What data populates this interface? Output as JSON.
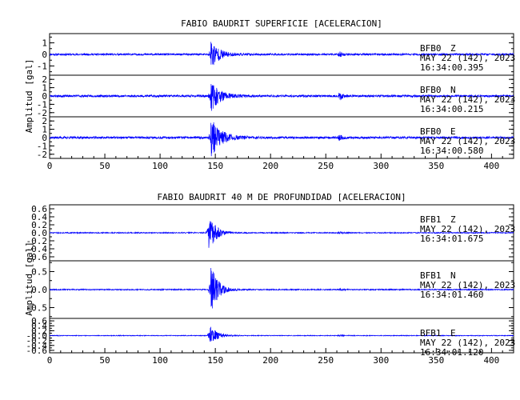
{
  "chart_data": [
    {
      "type": "line",
      "title": "FABIO BAUDRIT SUPERFICIE [ACELERACION]",
      "ylabel": "Amplitud [gal]",
      "xlim": [
        0,
        420
      ],
      "x_ticks": [
        "0",
        "50",
        "100",
        "150",
        "200",
        "250",
        "300",
        "350",
        "400"
      ],
      "trace_color": "#0000ff",
      "traces": [
        {
          "station": "BFB0",
          "component": "Z",
          "date": "MAY 22 (142), 2023",
          "time": "16:34:00.395",
          "ylim": [
            -1.8,
            1.8
          ],
          "y_ticks": [
            -1,
            0,
            1
          ],
          "y_tick_labels": [
            "-1",
            "0",
            "1"
          ],
          "noise_amp": 0.08,
          "peak_amp": 1.3,
          "onset_x": 146,
          "decay_s": 7,
          "second_event_x": 263,
          "second_event_amp": 0.18,
          "seed": 11
        },
        {
          "station": "BFB0",
          "component": "N",
          "date": "MAY 22 (142), 2023",
          "time": "16:34:00.215",
          "ylim": [
            -2.5,
            2.5
          ],
          "y_ticks": [
            -2,
            -1,
            0,
            1,
            2
          ],
          "y_tick_labels": [
            "-2",
            "-1",
            "0",
            "1",
            "2"
          ],
          "noise_amp": 0.13,
          "peak_amp": 1.8,
          "onset_x": 146,
          "decay_s": 8,
          "second_event_x": 263,
          "second_event_amp": 0.35,
          "seed": 23
        },
        {
          "station": "BFB0",
          "component": "E",
          "date": "MAY 22 (142), 2023",
          "time": "16:34:00.580",
          "ylim": [
            -2.5,
            2.5
          ],
          "y_ticks": [
            -2,
            -1,
            0,
            1,
            2
          ],
          "y_tick_labels": [
            "-2",
            "-1",
            "0",
            "1",
            "2"
          ],
          "noise_amp": 0.13,
          "peak_amp": 2.3,
          "onset_x": 146,
          "decay_s": 9,
          "second_event_x": 263,
          "second_event_amp": 0.35,
          "seed": 37
        }
      ]
    },
    {
      "type": "line",
      "title": "FABIO BAUDRIT 40 M DE PROFUNDIDAD [ACELERACION]",
      "ylabel": "Amplitud [gal]",
      "xlim": [
        0,
        420
      ],
      "x_ticks": [
        "0",
        "50",
        "100",
        "150",
        "200",
        "250",
        "300",
        "350",
        "400"
      ],
      "trace_color": "#0000ff",
      "traces": [
        {
          "station": "BFB1",
          "component": "Z",
          "date": "MAY 22 (142), 2023",
          "time": "16:34:01.675",
          "ylim": [
            -0.7,
            0.7
          ],
          "y_ticks": [
            -0.6,
            -0.4,
            -0.2,
            0,
            0.2,
            0.4,
            0.6
          ],
          "y_tick_labels": [
            "-0.6",
            "-0.4",
            "-0.2",
            "0.0",
            "0.2",
            "0.4",
            "0.6"
          ],
          "noise_amp": 0.012,
          "peak_amp": 0.5,
          "onset_x": 144,
          "decay_s": 6,
          "second_event_x": 263,
          "second_event_amp": 0.02,
          "seed": 51
        },
        {
          "station": "BFB1",
          "component": "N",
          "date": "MAY 22 (142), 2023",
          "time": "16:34:01.460",
          "ylim": [
            -0.8,
            0.8
          ],
          "y_ticks": [
            -0.5,
            0,
            0.5
          ],
          "y_tick_labels": [
            "-0.5",
            "0.0",
            "0.5"
          ],
          "noise_amp": 0.014,
          "peak_amp": 0.72,
          "onset_x": 146,
          "decay_s": 6,
          "second_event_x": 263,
          "second_event_amp": 0.025,
          "seed": 67
        },
        {
          "station": "BFB1",
          "component": "E",
          "date": "MAY 22 (142), 2023",
          "time": "16:34:01.120",
          "ylim": [
            -0.7,
            0.7
          ],
          "y_ticks": [
            -0.6,
            -0.4,
            -0.2,
            0,
            0.2,
            0.4,
            0.6
          ],
          "y_tick_labels": [
            "-0.6",
            "-0.4",
            "-0.2",
            "-0.0",
            "0.2",
            "0.4",
            "0.6"
          ],
          "noise_amp": 0.014,
          "peak_amp": 0.45,
          "onset_x": 145,
          "decay_s": 6,
          "second_event_x": 263,
          "second_event_amp": 0.025,
          "seed": 83
        }
      ]
    }
  ]
}
